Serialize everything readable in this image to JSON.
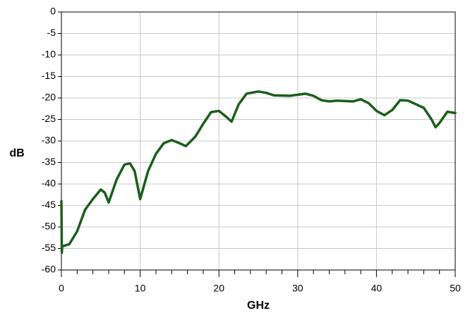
{
  "chart_data": {
    "type": "line",
    "xlabel": "GHz",
    "ylabel": "dB",
    "xlim": [
      0,
      50
    ],
    "xticks": [
      0,
      10,
      20,
      30,
      40,
      50
    ],
    "xminorticks": [
      2,
      4,
      6,
      8,
      12,
      14,
      16,
      18,
      22,
      24,
      26,
      28,
      32,
      34,
      36,
      38,
      42,
      44,
      46,
      48
    ],
    "ylim": [
      -60,
      0
    ],
    "yticks": [
      0,
      -5,
      -10,
      -15,
      -20,
      -25,
      -30,
      -35,
      -40,
      -45,
      -50,
      -55,
      -60
    ],
    "grid": true,
    "series": [
      {
        "color": "#1b5e1b",
        "x": [
          0,
          0.05,
          0.1,
          1,
          2,
          3,
          4,
          5,
          5.5,
          6,
          7,
          8,
          8.7,
          9.3,
          10,
          11,
          12,
          13,
          14,
          15,
          15.8,
          17,
          18,
          19,
          20,
          21,
          21.6,
          22.5,
          23.5,
          25,
          26,
          27,
          29,
          31,
          32,
          33,
          34,
          35,
          37,
          38,
          39,
          40,
          41,
          42,
          43,
          44,
          46,
          47,
          47.5,
          48,
          49,
          50
        ],
        "values": [
          -44,
          -56,
          -54.5,
          -54,
          -51,
          -46,
          -43.5,
          -41.3,
          -42,
          -44.3,
          -39,
          -35.5,
          -35.2,
          -37,
          -43.5,
          -37,
          -33,
          -30.5,
          -29.8,
          -30.5,
          -31.2,
          -29,
          -26,
          -23.3,
          -23,
          -24.5,
          -25.5,
          -21.5,
          -19,
          -18.5,
          -18.8,
          -19.4,
          -19.5,
          -19,
          -19.5,
          -20.5,
          -20.8,
          -20.6,
          -20.8,
          -20.3,
          -21.2,
          -23,
          -24,
          -22.8,
          -20.5,
          -20.6,
          -22.3,
          -25,
          -26.8,
          -25.8,
          -23.2,
          -23.5
        ]
      }
    ]
  }
}
